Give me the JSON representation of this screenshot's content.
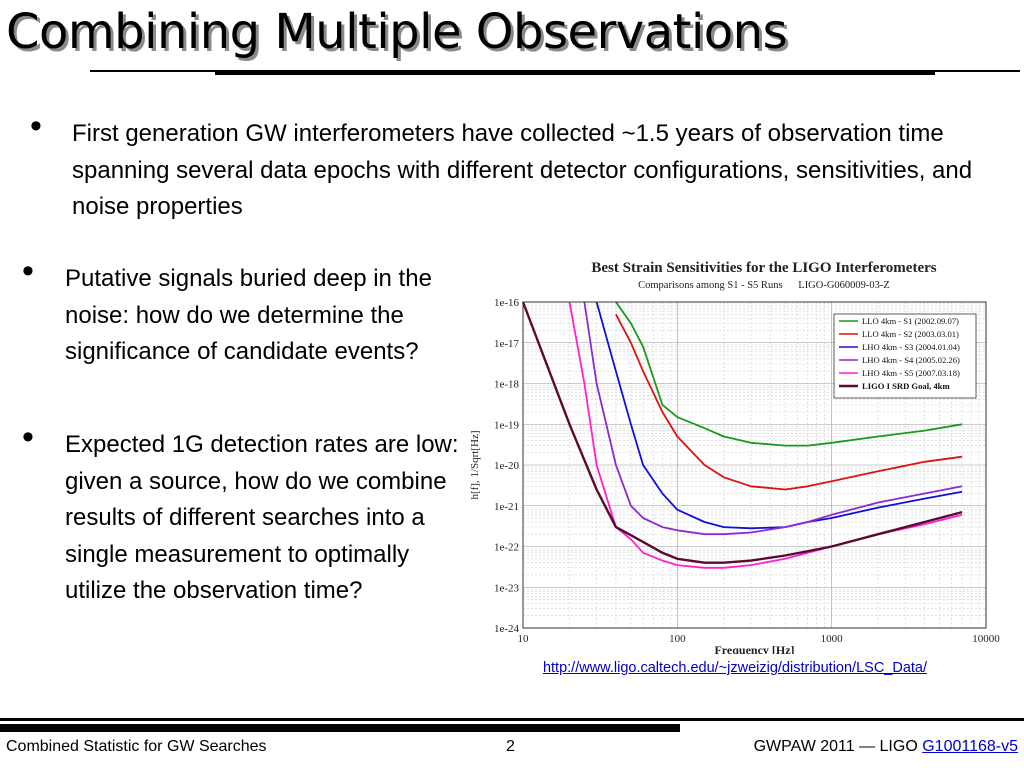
{
  "slide": {
    "title": "Combining Multiple Observations",
    "bullets": [
      "First generation GW interferometers have collected ~1.5 years of observation time spanning several data epochs with different detector configurations, sensitivities, and noise properties",
      "Putative signals buried deep in the noise: how do we determine the significance of candidate events?",
      "Expected 1G detection rates are low: given a source, how do we combine results of different searches into a single measurement to optimally utilize the observation time?"
    ],
    "caption_link": "http://www.ligo.caltech.edu/~jzweizig/distribution/LSC_Data/"
  },
  "footer": {
    "left": "Combined Statistic for GW Searches",
    "page": "2",
    "right_prefix": "GWPAW 2011 — LIGO ",
    "right_link": "G1001168-v5"
  },
  "chart_data": {
    "type": "line",
    "title": "Best Strain Sensitivities for the LIGO Interferometers",
    "subtitle": "Comparisons among S1 - S5 Runs      LIGO-G060009-03-Z",
    "xlabel": "Frequency [Hz]",
    "ylabel": "h[f], 1/Sqrt[Hz]",
    "xscale": "log",
    "yscale": "log",
    "xlim": [
      10,
      10000
    ],
    "ylim": [
      1e-24,
      1e-16
    ],
    "x_ticks": [
      "10",
      "100",
      "1000",
      "10000"
    ],
    "y_ticks": [
      "1e-16",
      "1e-17",
      "1e-18",
      "1e-19",
      "1e-20",
      "1e-21",
      "1e-22",
      "1e-23",
      "1e-24"
    ],
    "grid": true,
    "legend_position": "top-right",
    "series": [
      {
        "name": "LLO 4km - S1 (2002.09.07)",
        "color": "#1a9a1a",
        "x": [
          40,
          50,
          60,
          80,
          100,
          150,
          200,
          300,
          500,
          700,
          1000,
          2000,
          4000,
          7000
        ],
        "y": [
          1e-16,
          3e-17,
          8e-18,
          3e-19,
          1.5e-19,
          8e-20,
          5e-20,
          3.5e-20,
          3e-20,
          3e-20,
          3.5e-20,
          5e-20,
          7e-20,
          1e-19
        ]
      },
      {
        "name": "LLO 4km - S2 (2003.03.01)",
        "color": "#e01010",
        "x": [
          40,
          50,
          60,
          80,
          100,
          150,
          200,
          300,
          500,
          700,
          1000,
          2000,
          4000,
          7000
        ],
        "y": [
          5e-17,
          1e-17,
          2e-18,
          2e-19,
          5e-20,
          1e-20,
          5e-21,
          3e-21,
          2.5e-21,
          3e-21,
          4e-21,
          7e-21,
          1.2e-20,
          1.6e-20
        ]
      },
      {
        "name": "LHO 4km - S3 (2004.01.04)",
        "color": "#1010e0",
        "x": [
          30,
          40,
          50,
          60,
          80,
          100,
          150,
          200,
          300,
          500,
          700,
          1000,
          2000,
          4000,
          7000
        ],
        "y": [
          1e-16,
          2e-18,
          1e-19,
          1e-20,
          2e-21,
          8e-22,
          4e-22,
          3e-22,
          2.8e-22,
          3e-22,
          4e-22,
          5e-22,
          9e-22,
          1.5e-21,
          2.2e-21
        ]
      },
      {
        "name": "LHO 4km - S4 (2005.02.26)",
        "color": "#8a2ad0",
        "x": [
          25,
          30,
          40,
          50,
          60,
          80,
          100,
          150,
          200,
          300,
          500,
          700,
          1000,
          2000,
          4000,
          7000
        ],
        "y": [
          1e-16,
          1e-18,
          1e-20,
          1e-21,
          5e-22,
          3e-22,
          2.5e-22,
          2e-22,
          2e-22,
          2.2e-22,
          3e-22,
          4e-22,
          6e-22,
          1.2e-21,
          2e-21,
          3e-21
        ]
      },
      {
        "name": "LHO 4km - S5 (2007.03.18)",
        "color": "#ff20d0",
        "x": [
          20,
          25,
          30,
          40,
          50,
          60,
          80,
          100,
          150,
          200,
          300,
          500,
          700,
          1000,
          2000,
          4000,
          7000
        ],
        "y": [
          1e-16,
          1e-18,
          1e-20,
          3e-22,
          1.5e-22,
          7e-23,
          4.5e-23,
          3.5e-23,
          3e-23,
          3e-23,
          3.5e-23,
          5e-23,
          7e-23,
          1e-22,
          2e-22,
          3.5e-22,
          6e-22
        ]
      },
      {
        "name": "LIGO I SRD Goal, 4km",
        "color": "#5a0a30",
        "x": [
          10,
          20,
          30,
          40,
          60,
          80,
          100,
          150,
          200,
          300,
          500,
          1000,
          2000,
          4000,
          7000
        ],
        "y": [
          1e-16,
          1e-19,
          2.5e-21,
          3e-22,
          1.3e-22,
          7e-23,
          5e-23,
          4e-23,
          4e-23,
          4.5e-23,
          6e-23,
          1e-22,
          2e-22,
          4e-22,
          7e-22
        ]
      }
    ]
  }
}
